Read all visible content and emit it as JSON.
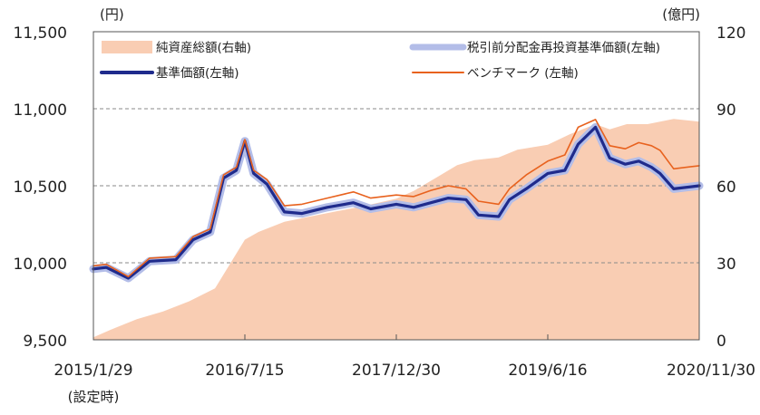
{
  "chart_data": {
    "type": "line",
    "left_unit": "(円)",
    "right_unit": "(億円)",
    "left_axis": {
      "min": 9500,
      "max": 11500,
      "ticks": [
        "9,500",
        "10,000",
        "10,500",
        "11,000",
        "11,500"
      ]
    },
    "right_axis": {
      "min": 0,
      "max": 120,
      "ticks": [
        "0",
        "30",
        "60",
        "90",
        "120"
      ]
    },
    "x_ticks": [
      "2015/1/29",
      "2016/7/15",
      "2017/12/30",
      "2019/6/16",
      "2020/11/30"
    ],
    "x_sublabel": "(設定時)",
    "grid": "horizontal dashed at 10,000 / 10,500 / 11,000",
    "legend_position": "top",
    "legend": [
      {
        "label": "純資産総額(右軸)",
        "kind": "area",
        "color": "#f9cdb3"
      },
      {
        "label": "税引前分配金再投資基準価額(左軸)",
        "kind": "thick-line",
        "color": "#b3bde8"
      },
      {
        "label": "基準価額(左軸)",
        "kind": "line",
        "color": "#1f2b8c"
      },
      {
        "label": "ベンチマーク (左軸)",
        "kind": "line",
        "color": "#e8621e"
      }
    ],
    "x_range": [
      "2015/1/29",
      "2020/11/30"
    ],
    "series": [
      {
        "name": "純資産総額(右軸)",
        "axis": "right",
        "type": "area",
        "color": "#f9cdb3",
        "x": [
          "2015/1/29",
          "2015/4/1",
          "2015/7/1",
          "2015/10/1",
          "2016/1/1",
          "2016/4/1",
          "2016/7/15",
          "2016/9/1",
          "2016/12/1",
          "2017/3/1",
          "2017/6/1",
          "2017/9/1",
          "2017/12/30",
          "2018/3/1",
          "2018/6/1",
          "2018/8/1",
          "2018/10/1",
          "2018/12/25",
          "2019/3/1",
          "2019/6/16",
          "2019/9/1",
          "2019/12/1",
          "2020/1/20",
          "2020/3/20",
          "2020/6/1",
          "2020/9/1",
          "2020/11/30"
        ],
        "values": [
          1,
          4,
          8,
          11,
          15,
          20,
          39,
          42,
          46,
          48,
          50,
          52,
          55,
          58,
          64,
          68,
          70,
          71,
          74,
          76,
          80,
          84,
          82,
          84,
          84,
          86,
          85
        ]
      },
      {
        "name": "税引前分配金再投資基準価額(左軸)",
        "axis": "left",
        "type": "line",
        "color": "#b3bde8",
        "x": [
          "2015/1/29",
          "2015/3/15",
          "2015/6/1",
          "2015/8/15",
          "2015/11/15",
          "2016/1/15",
          "2016/3/15",
          "2016/5/1",
          "2016/6/15",
          "2016/7/15",
          "2016/8/15",
          "2016/10/1",
          "2016/12/1",
          "2017/2/1",
          "2017/5/1",
          "2017/8/1",
          "2017/10/1",
          "2017/12/30",
          "2018/3/1",
          "2018/5/1",
          "2018/7/1",
          "2018/9/1",
          "2018/10/15",
          "2018/12/25",
          "2019/2/1",
          "2019/4/1",
          "2019/6/16",
          "2019/8/15",
          "2019/10/1",
          "2019/12/1",
          "2020/1/20",
          "2020/3/15",
          "2020/5/1",
          "2020/6/15",
          "2020/7/15",
          "2020/9/1",
          "2020/11/30"
        ],
        "values": [
          9960,
          9970,
          9900,
          10010,
          10020,
          10150,
          10200,
          10550,
          10600,
          10790,
          10580,
          10510,
          10330,
          10320,
          10360,
          10390,
          10350,
          10380,
          10360,
          10390,
          10420,
          10410,
          10310,
          10300,
          10410,
          10480,
          10580,
          10600,
          10770,
          10880,
          10680,
          10640,
          10660,
          10620,
          10580,
          10480,
          10500
        ]
      },
      {
        "name": "基準価額(左軸)",
        "axis": "left",
        "type": "line",
        "color": "#1f2b8c",
        "x": [
          "2015/1/29",
          "2015/3/15",
          "2015/6/1",
          "2015/8/15",
          "2015/11/15",
          "2016/1/15",
          "2016/3/15",
          "2016/5/1",
          "2016/6/15",
          "2016/7/15",
          "2016/8/15",
          "2016/10/1",
          "2016/12/1",
          "2017/2/1",
          "2017/5/1",
          "2017/8/1",
          "2017/10/1",
          "2017/12/30",
          "2018/3/1",
          "2018/5/1",
          "2018/7/1",
          "2018/9/1",
          "2018/10/15",
          "2018/12/25",
          "2019/2/1",
          "2019/4/1",
          "2019/6/16",
          "2019/8/15",
          "2019/10/1",
          "2019/12/1",
          "2020/1/20",
          "2020/3/15",
          "2020/5/1",
          "2020/6/15",
          "2020/7/15",
          "2020/9/1",
          "2020/11/30"
        ],
        "values": [
          9960,
          9970,
          9900,
          10010,
          10020,
          10150,
          10200,
          10550,
          10600,
          10790,
          10580,
          10510,
          10330,
          10320,
          10360,
          10390,
          10350,
          10380,
          10360,
          10390,
          10420,
          10410,
          10310,
          10300,
          10410,
          10480,
          10580,
          10600,
          10770,
          10880,
          10680,
          10640,
          10660,
          10620,
          10580,
          10480,
          10500
        ]
      },
      {
        "name": "ベンチマーク (左軸)",
        "axis": "left",
        "type": "line",
        "color": "#e8621e",
        "x": [
          "2015/1/29",
          "2015/3/15",
          "2015/6/1",
          "2015/8/15",
          "2015/11/15",
          "2016/1/15",
          "2016/3/15",
          "2016/5/1",
          "2016/6/15",
          "2016/7/15",
          "2016/8/15",
          "2016/10/1",
          "2016/12/1",
          "2017/2/1",
          "2017/5/1",
          "2017/8/1",
          "2017/10/1",
          "2017/12/30",
          "2018/3/1",
          "2018/5/1",
          "2018/7/1",
          "2018/9/1",
          "2018/10/15",
          "2018/12/25",
          "2019/2/1",
          "2019/4/1",
          "2019/6/16",
          "2019/8/15",
          "2019/10/1",
          "2019/12/1",
          "2020/1/20",
          "2020/3/15",
          "2020/5/1",
          "2020/6/15",
          "2020/7/15",
          "2020/9/1",
          "2020/11/30"
        ],
        "values": [
          9980,
          9990,
          9910,
          10030,
          10040,
          10170,
          10220,
          10570,
          10620,
          10800,
          10600,
          10540,
          10370,
          10380,
          10420,
          10460,
          10420,
          10440,
          10430,
          10470,
          10500,
          10480,
          10400,
          10380,
          10480,
          10570,
          10660,
          10700,
          10880,
          10930,
          10760,
          10740,
          10780,
          10760,
          10730,
          10610,
          10630
        ]
      }
    ]
  }
}
